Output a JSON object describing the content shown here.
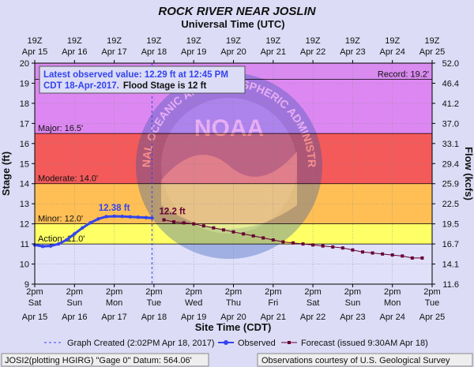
{
  "chart_data": {
    "type": "line",
    "title": "ROCK RIVER NEAR JOSLIN",
    "top_axis_title": "Universal Time (UTC)",
    "xlabel": "Site Time (CDT)",
    "ylabel": "Stage (ft)",
    "y2label": "Flow (kcfs)",
    "ylim": [
      9,
      20
    ],
    "y_ticks": [
      9,
      10,
      11,
      12,
      13,
      14,
      15,
      16,
      17,
      18,
      19,
      20
    ],
    "y2_ticks": [
      "11.6",
      "14.1",
      "16.7",
      "19.5",
      "22.5",
      "25.9",
      "29.4",
      "33.1",
      "37.0",
      "41.2",
      "46.4",
      "52.0"
    ],
    "xlim_days": [
      0,
      10
    ],
    "top_ticks": [
      {
        "l1": "19Z",
        "l2": "Apr 15"
      },
      {
        "l1": "19Z",
        "l2": "Apr 16"
      },
      {
        "l1": "19Z",
        "l2": "Apr 17"
      },
      {
        "l1": "19Z",
        "l2": "Apr 18"
      },
      {
        "l1": "19Z",
        "l2": "Apr 19"
      },
      {
        "l1": "19Z",
        "l2": "Apr 20"
      },
      {
        "l1": "19Z",
        "l2": "Apr 21"
      },
      {
        "l1": "19Z",
        "l2": "Apr 22"
      },
      {
        "l1": "19Z",
        "l2": "Apr 23"
      },
      {
        "l1": "19Z",
        "l2": "Apr 24"
      },
      {
        "l1": "19Z",
        "l2": "Apr 25"
      }
    ],
    "bottom_ticks": [
      {
        "l1": "2pm",
        "l2": "Sat",
        "l3": "Apr 15"
      },
      {
        "l1": "2pm",
        "l2": "Sun",
        "l3": "Apr 16"
      },
      {
        "l1": "2pm",
        "l2": "Mon",
        "l3": "Apr 17"
      },
      {
        "l1": "2pm",
        "l2": "Tue",
        "l3": "Apr 18"
      },
      {
        "l1": "2pm",
        "l2": "Wed",
        "l3": "Apr 19"
      },
      {
        "l1": "2pm",
        "l2": "Thu",
        "l3": "Apr 20"
      },
      {
        "l1": "2pm",
        "l2": "Fri",
        "l3": "Apr 21"
      },
      {
        "l1": "2pm",
        "l2": "Sat",
        "l3": "Apr 22"
      },
      {
        "l1": "2pm",
        "l2": "Sun",
        "l3": "Apr 23"
      },
      {
        "l1": "2pm",
        "l2": "Mon",
        "l3": "Apr 24"
      },
      {
        "l1": "2pm",
        "l2": "Tue",
        "l3": "Apr 25"
      }
    ],
    "bands": [
      {
        "name": "record",
        "from": 19.2,
        "to": 20,
        "color": "#d98bf0"
      },
      {
        "name": "major",
        "from": 16.5,
        "to": 19.2,
        "color": "#dd88f2"
      },
      {
        "name": "moderate",
        "from": 14.0,
        "to": 16.5,
        "color": "#f45a5a"
      },
      {
        "name": "minor",
        "from": 12.0,
        "to": 14.0,
        "color": "#ffbf55"
      },
      {
        "name": "action",
        "from": 11.0,
        "to": 12.0,
        "color": "#ffff66"
      },
      {
        "name": "normal",
        "from": 9,
        "to": 11.0,
        "color": "#e0e0fa"
      }
    ],
    "thresholds": [
      {
        "name": "record",
        "value": 19.2,
        "label": "Record: 19.2'",
        "side": "right"
      },
      {
        "name": "major",
        "value": 16.5,
        "label": "Major: 16.5'",
        "side": "left"
      },
      {
        "name": "moderate",
        "value": 14.0,
        "label": "Moderate: 14.0'",
        "side": "left"
      },
      {
        "name": "minor",
        "value": 12.0,
        "label": "Minor: 12.0'",
        "side": "left"
      },
      {
        "name": "action",
        "value": 11.0,
        "label": "Action: 11.0'",
        "side": "left"
      }
    ],
    "observed": {
      "name": "Observed",
      "color": "#3344ee",
      "x": [
        0,
        0.2,
        0.4,
        0.6,
        0.8,
        1.0,
        1.2,
        1.4,
        1.6,
        1.8,
        2.0,
        2.2,
        2.4,
        2.6,
        2.8,
        2.95
      ],
      "values": [
        10.95,
        10.88,
        10.9,
        11.0,
        11.2,
        11.5,
        11.8,
        12.05,
        12.25,
        12.36,
        12.38,
        12.37,
        12.35,
        12.33,
        12.31,
        12.29
      ],
      "peak_label": "12.38 ft",
      "peak_index": 10
    },
    "forecast": {
      "name": "Forecast (issued 9:30AM Apr 18)",
      "color": "#660033",
      "x": [
        3.25,
        3.5,
        3.75,
        4.0,
        4.25,
        4.5,
        4.75,
        5.0,
        5.25,
        5.5,
        5.75,
        6.0,
        6.25,
        6.5,
        6.75,
        7.0,
        7.25,
        7.5,
        7.75,
        8.0,
        8.25,
        8.5,
        8.75,
        9.0,
        9.25,
        9.5,
        9.75
      ],
      "values": [
        12.2,
        12.1,
        12.05,
        12.0,
        11.9,
        11.8,
        11.7,
        11.6,
        11.5,
        11.4,
        11.3,
        11.2,
        11.1,
        11.05,
        11.0,
        10.95,
        10.9,
        10.85,
        10.8,
        10.7,
        10.6,
        10.55,
        10.5,
        10.45,
        10.4,
        10.3,
        10.3
      ],
      "start_label": "12.2 ft"
    },
    "graph_created_x": 2.95,
    "annotation": {
      "line1": "Latest observed value: 12.29 ft at 12:45 PM",
      "line2a": "CDT 18-Apr-2017.",
      "line2b": "Flood Stage is 12 ft"
    },
    "legend": {
      "created": "Graph Created (2:02PM Apr 18, 2017)",
      "observed": "Observed",
      "forecast": "Forecast (issued 9:30AM Apr 18)"
    },
    "footer_left": "JOSI2(plotting HGIRG) \"Gage 0\" Datum: 564.06'",
    "footer_right": "Observations courtesy of U.S. Geological Survey",
    "watermark_top": "NATIONAL OCEANIC AND ATMOSPHERIC ADMINISTRATION",
    "watermark_bottom": "U.S. DEPARTMENT OF COMMERCE",
    "watermark_center": "NOAA"
  }
}
